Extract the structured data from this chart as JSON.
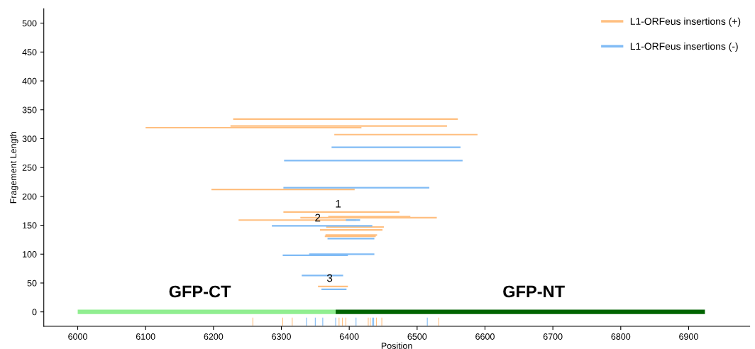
{
  "chart_data": {
    "type": "line",
    "xlabel": "Position",
    "ylabel": "Fragement Length",
    "xlim": [
      5950,
      6990
    ],
    "ylim": [
      -25,
      525
    ],
    "xticks": [
      6000,
      6100,
      6200,
      6300,
      6400,
      6500,
      6600,
      6700,
      6800,
      6900
    ],
    "yticks": [
      0,
      50,
      100,
      150,
      200,
      250,
      300,
      350,
      400,
      450,
      500
    ],
    "grid": false,
    "legend": "top right",
    "marker": "none",
    "line_style": "solid",
    "annotations": [
      "1",
      "2",
      "3",
      "GFP-CT",
      "GFP-NT"
    ],
    "series": [
      {
        "name": "L1-ORFeus insertions (+)",
        "color": "#ffbf80",
        "x": [
          6229,
          6560
        ],
        "values": [
          334,
          334
        ]
      },
      {
        "color": "#ffbf80",
        "x": [
          6225,
          6544
        ],
        "values": [
          322,
          322
        ]
      },
      {
        "color": "#ffbf80",
        "x": [
          6100,
          6418
        ],
        "values": [
          319,
          319
        ]
      },
      {
        "color": "#ffbf80",
        "x": [
          6378,
          6589
        ],
        "values": [
          307,
          307
        ]
      },
      {
        "color": "#ffbf80",
        "x": [
          6197,
          6408
        ],
        "values": [
          212,
          212
        ]
      },
      {
        "color": "#ffbf80",
        "x": [
          6303,
          6474
        ],
        "values": [
          173,
          173
        ]
      },
      {
        "color": "#ffbf80",
        "x": [
          6328,
          6529
        ],
        "values": [
          163,
          163
        ]
      },
      {
        "color": "#ffbf80",
        "x": [
          6369,
          6490
        ],
        "values": [
          165,
          165
        ]
      },
      {
        "color": "#ffbf80",
        "x": [
          6237,
          6410
        ],
        "values": [
          159,
          159
        ]
      },
      {
        "color": "#ffbf80",
        "x": [
          6366,
          6451
        ],
        "values": [
          147,
          147
        ]
      },
      {
        "color": "#ffbf80",
        "x": [
          6357,
          6449
        ],
        "values": [
          142,
          142
        ]
      },
      {
        "color": "#ffbf80",
        "x": [
          6365,
          6441
        ],
        "values": [
          133,
          133
        ]
      },
      {
        "color": "#ffbf80",
        "x": [
          6364,
          6439
        ],
        "values": [
          131,
          131
        ]
      },
      {
        "color": "#ffbf80",
        "x": [
          6354,
          6398
        ],
        "values": [
          44,
          44
        ]
      },
      {
        "name": "L1-ORFeus insertions (-)",
        "color": "#80bbf5",
        "x": [
          6374,
          6564
        ],
        "values": [
          285,
          285
        ]
      },
      {
        "color": "#80bbf5",
        "x": [
          6304,
          6567
        ],
        "values": [
          262,
          262
        ]
      },
      {
        "color": "#80bbf5",
        "x": [
          6303,
          6518
        ],
        "values": [
          215,
          215
        ]
      },
      {
        "color": "#80bbf5",
        "x": [
          6395,
          6416
        ],
        "values": [
          159,
          159
        ]
      },
      {
        "color": "#80bbf5",
        "x": [
          6286,
          6434
        ],
        "values": [
          149,
          149
        ]
      },
      {
        "color": "#80bbf5",
        "x": [
          6368,
          6437
        ],
        "values": [
          127,
          127
        ]
      },
      {
        "color": "#80bbf5",
        "x": [
          6302,
          6398
        ],
        "values": [
          98,
          98
        ]
      },
      {
        "color": "#80bbf5",
        "x": [
          6341,
          6437
        ],
        "values": [
          100,
          100
        ]
      },
      {
        "color": "#80bbf5",
        "x": [
          6330,
          6391
        ],
        "values": [
          63,
          63
        ]
      },
      {
        "color": "#80bbf5",
        "x": [
          6359,
          6396
        ],
        "values": [
          39,
          39
        ]
      },
      {
        "color": "#90ee90",
        "x": [
          6000,
          6380
        ],
        "values": [
          0,
          0
        ]
      },
      {
        "color": "#006400",
        "x": [
          6380,
          6924
        ],
        "values": [
          0,
          0
        ]
      },
      {
        "color": "#ffbf80",
        "x": [
          6258,
          6258
        ],
        "values": [
          -10,
          -24
        ]
      },
      {
        "color": "#ffbf80",
        "x": [
          6302,
          6302
        ],
        "values": [
          -10,
          -24
        ]
      },
      {
        "color": "#ffbf80",
        "x": [
          6316,
          6316
        ],
        "values": [
          -10,
          -24
        ]
      },
      {
        "color": "#80bbf5",
        "x": [
          6337,
          6337
        ],
        "values": [
          -10,
          -24
        ]
      },
      {
        "color": "#80bbf5",
        "x": [
          6350,
          6350
        ],
        "values": [
          -10,
          -24
        ]
      },
      {
        "color": "#80bbf5",
        "x": [
          6361,
          6361
        ],
        "values": [
          -10,
          -24
        ]
      },
      {
        "color": "#80bbf5",
        "x": [
          6380,
          6380
        ],
        "values": [
          -10,
          -24
        ]
      },
      {
        "color": "#ffbf80",
        "x": [
          6385,
          6385
        ],
        "values": [
          -10,
          -24
        ]
      },
      {
        "color": "#ffbf80",
        "x": [
          6390,
          6390
        ],
        "values": [
          -10,
          -24
        ]
      },
      {
        "color": "#ffbf80",
        "x": [
          6395,
          6395
        ],
        "values": [
          -10,
          -24
        ]
      },
      {
        "color": "#80bbf5",
        "x": [
          6410,
          6410
        ],
        "values": [
          -10,
          -24
        ]
      },
      {
        "color": "#ffbf80",
        "x": [
          6428,
          6428
        ],
        "values": [
          -10,
          -24
        ]
      },
      {
        "color": "#ffbf80",
        "x": [
          6431,
          6431
        ],
        "values": [
          -10,
          -24
        ]
      },
      {
        "color": "#80bbf5",
        "x": [
          6434,
          6434
        ],
        "values": [
          -10,
          -24
        ]
      },
      {
        "color": "#80bbf5",
        "x": [
          6436,
          6436
        ],
        "values": [
          -10,
          -24
        ]
      },
      {
        "color": "#ffbf80",
        "x": [
          6440,
          6440
        ],
        "values": [
          -10,
          -24
        ]
      },
      {
        "color": "#ffbf80",
        "x": [
          6448,
          6448
        ],
        "values": [
          -10,
          -24
        ]
      },
      {
        "color": "#80bbf5",
        "x": [
          6515,
          6515
        ],
        "values": [
          -10,
          -24
        ]
      },
      {
        "color": "#ffbf80",
        "x": [
          6532,
          6532
        ],
        "values": [
          -10,
          -24
        ]
      }
    ]
  }
}
